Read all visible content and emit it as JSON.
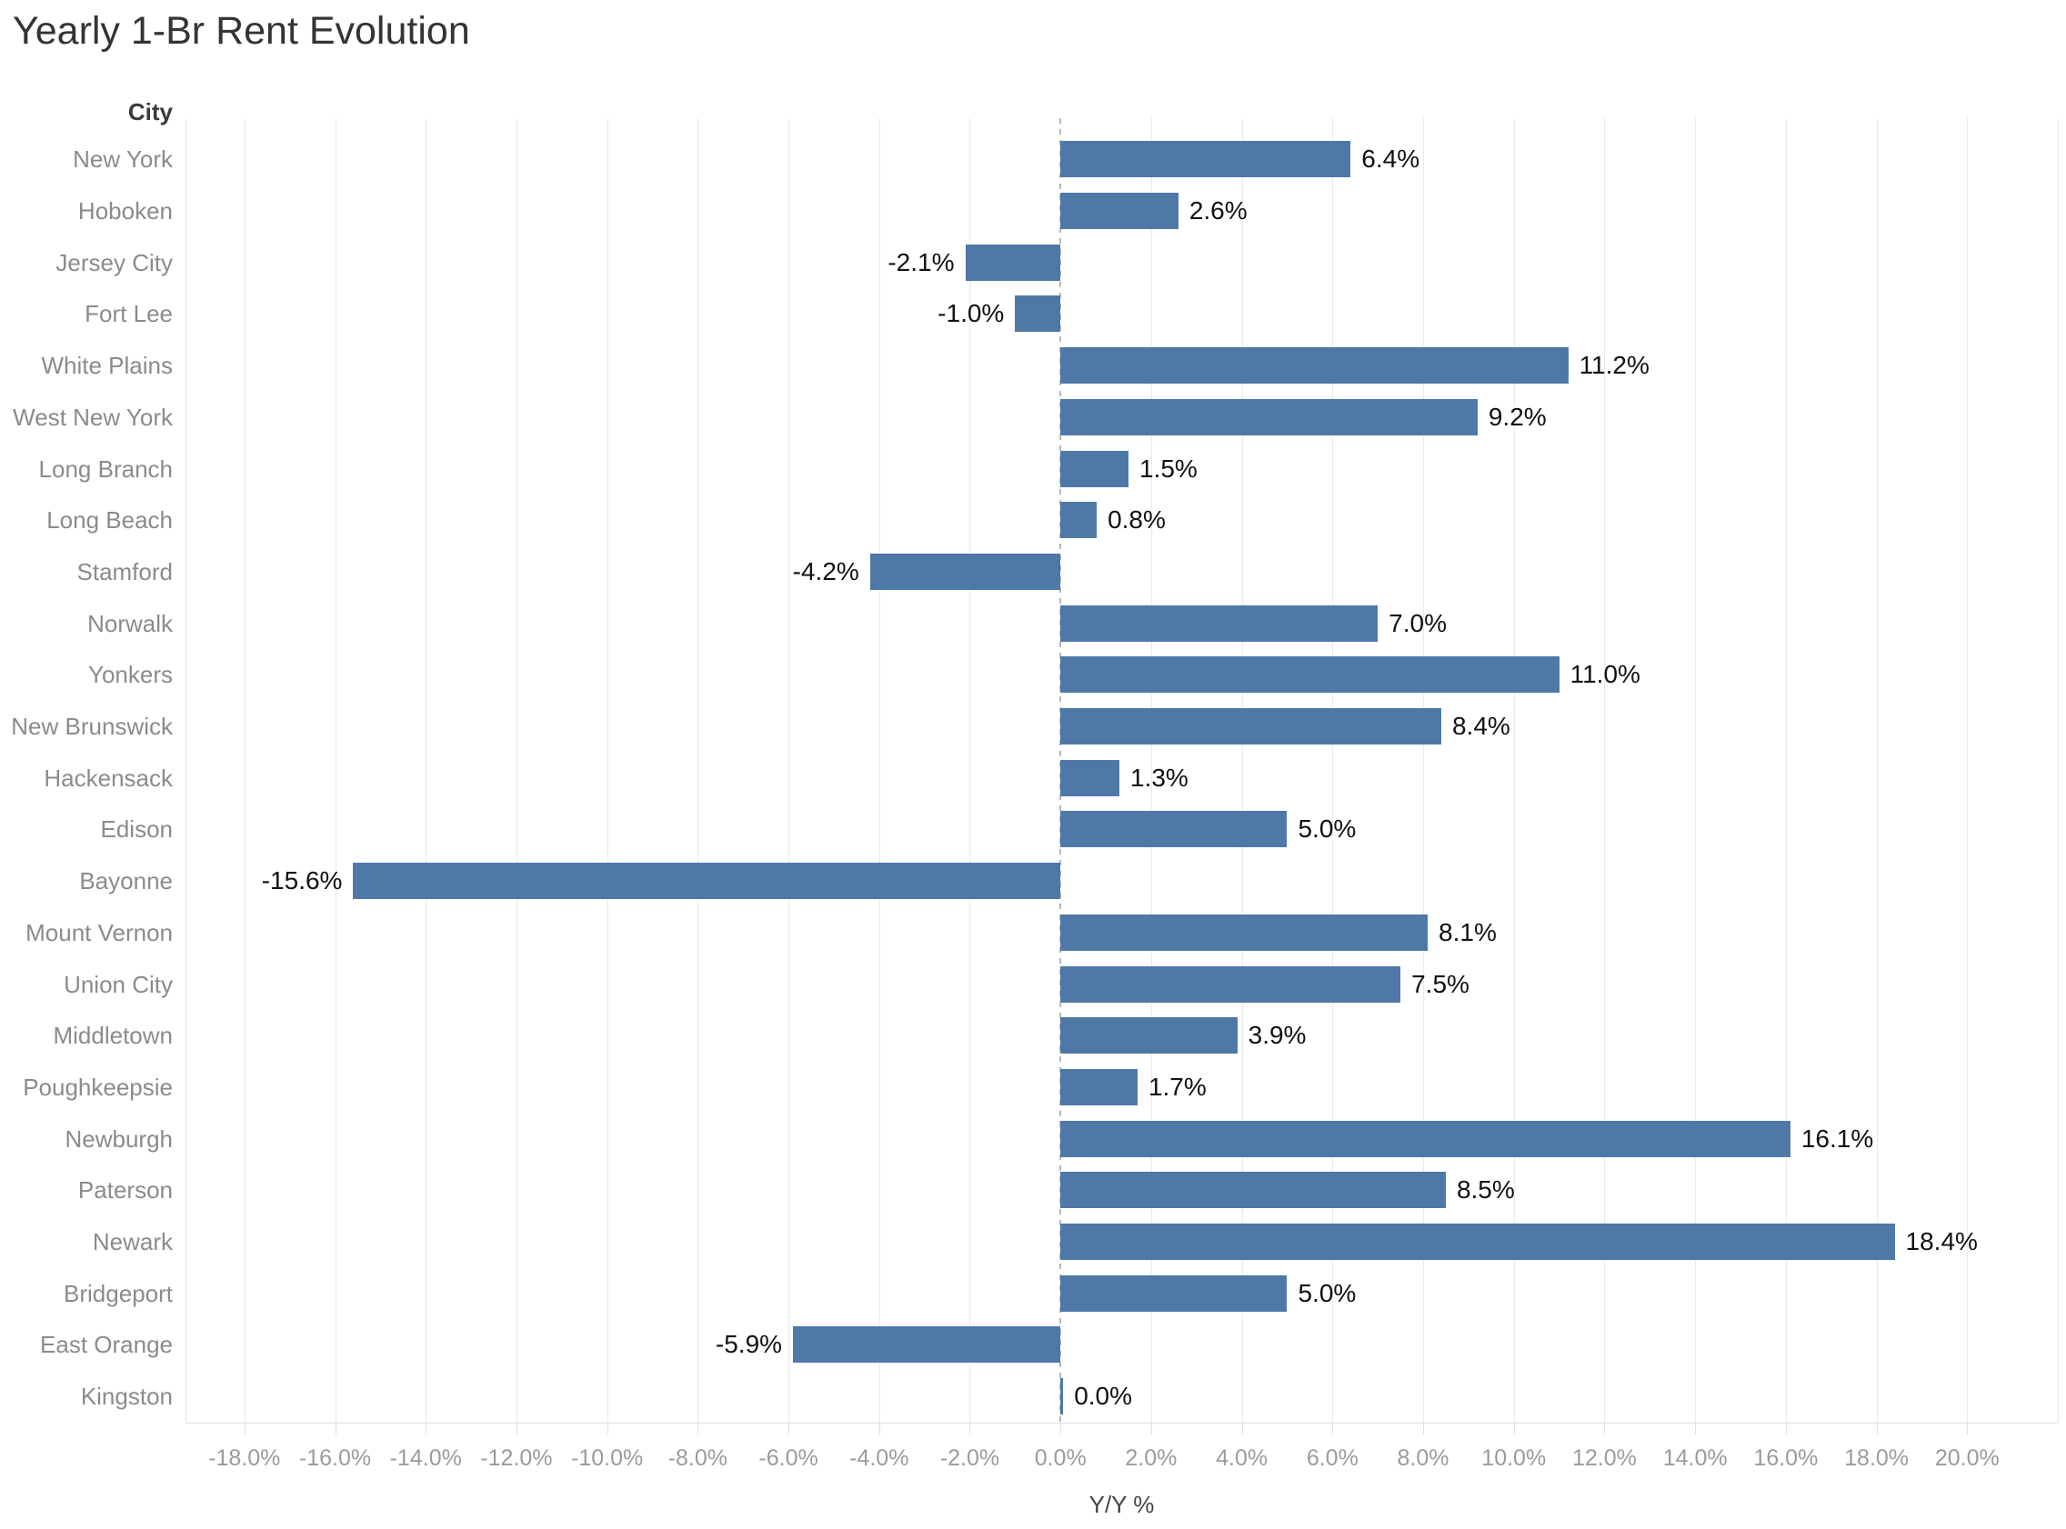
{
  "chart_data": {
    "type": "bar",
    "orientation": "horizontal",
    "title": "Yearly 1-Br Rent Evolution",
    "category_axis_label": "City",
    "value_axis_label": "Y/Y %",
    "categories": [
      "New York",
      "Hoboken",
      "Jersey City",
      "Fort Lee",
      "White Plains",
      "West New York",
      "Long Branch",
      "Long Beach",
      "Stamford",
      "Norwalk",
      "Yonkers",
      "New Brunswick",
      "Hackensack",
      "Edison",
      "Bayonne",
      "Mount Vernon",
      "Union City",
      "Middletown",
      "Poughkeepsie",
      "Newburgh",
      "Paterson",
      "Newark",
      "Bridgeport",
      "East Orange",
      "Kingston"
    ],
    "values": [
      6.4,
      2.6,
      -2.1,
      -1.0,
      11.2,
      9.2,
      1.5,
      0.8,
      -4.2,
      7.0,
      11.0,
      8.4,
      1.3,
      5.0,
      -15.6,
      8.1,
      7.5,
      3.9,
      1.7,
      16.1,
      8.5,
      18.4,
      5.0,
      -5.9,
      0.0
    ],
    "value_labels": [
      "6.4%",
      "2.6%",
      "-2.1%",
      "-1.0%",
      "11.2%",
      "9.2%",
      "1.5%",
      "0.8%",
      "-4.2%",
      "7.0%",
      "11.0%",
      "8.4%",
      "1.3%",
      "5.0%",
      "-15.6%",
      "8.1%",
      "7.5%",
      "3.9%",
      "1.7%",
      "16.1%",
      "8.5%",
      "18.4%",
      "5.0%",
      "-5.9%",
      "0.0%"
    ],
    "x_ticks": [
      -18,
      -16,
      -14,
      -12,
      -10,
      -8,
      -6,
      -4,
      -2,
      0,
      2,
      4,
      6,
      8,
      10,
      12,
      14,
      16,
      18,
      20
    ],
    "x_tick_labels": [
      "-18.0%",
      "-16.0%",
      "-14.0%",
      "-12.0%",
      "-10.0%",
      "-8.0%",
      "-6.0%",
      "-4.0%",
      "-2.0%",
      "0.0%",
      "2.0%",
      "4.0%",
      "6.0%",
      "8.0%",
      "10.0%",
      "12.0%",
      "14.0%",
      "16.0%",
      "18.0%",
      "20.0%"
    ],
    "xlim": [
      -19.3,
      22.0
    ],
    "grid": true,
    "legend": false,
    "bar_color": "#4e79a7",
    "zero_line_style": "dashed"
  }
}
